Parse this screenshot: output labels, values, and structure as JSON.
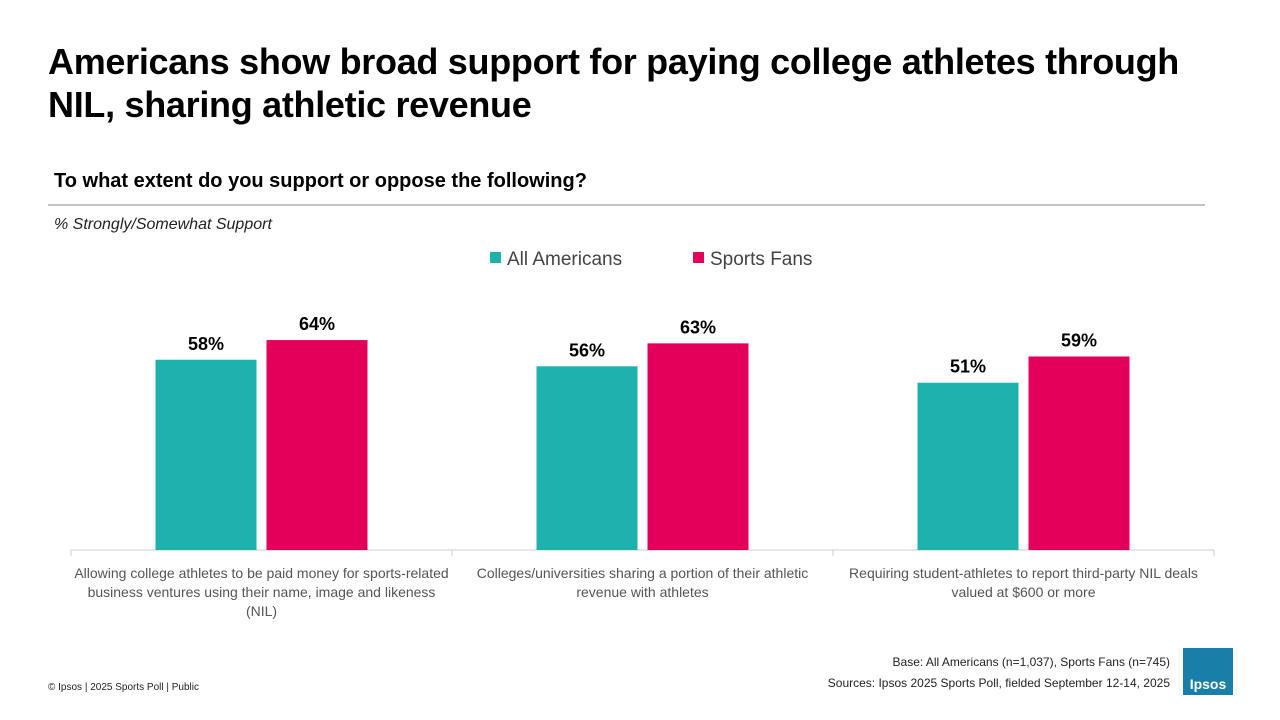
{
  "chart_data": {
    "type": "bar",
    "title": "Americans show broad support for paying college athletes through NIL, sharing athletic revenue",
    "subtitle": "To what extent do you support or oppose the following?",
    "value_axis_note": "% Strongly/Somewhat Support",
    "categories": [
      "Allowing college athletes to be paid money for sports-related business ventures using their name, image and likeness (NIL)",
      "Colleges/universities sharing a portion of their athletic revenue with athletes",
      "Requiring student-athletes to report third-party NIL deals valued at $600 or more"
    ],
    "series": [
      {
        "name": "All Americans",
        "color": "#1fb1ae",
        "values": [
          58,
          56,
          51
        ],
        "value_labels": [
          "58%",
          "56%",
          "51%"
        ]
      },
      {
        "name": "Sports Fans",
        "color": "#e4005a",
        "values": [
          64,
          63,
          59
        ],
        "value_labels": [
          "64%",
          "63%",
          "59%"
        ]
      }
    ],
    "legend": "top"
  },
  "footer": {
    "copyright": "© Ipsos | 2025 Sports Poll | Public",
    "base": "Base: All Americans (n=1,037), Sports Fans (n=745)",
    "sources": "Sources: Ipsos 2025 Sports Poll, fielded September 12-14, 2025",
    "logo": "Ipsos"
  }
}
